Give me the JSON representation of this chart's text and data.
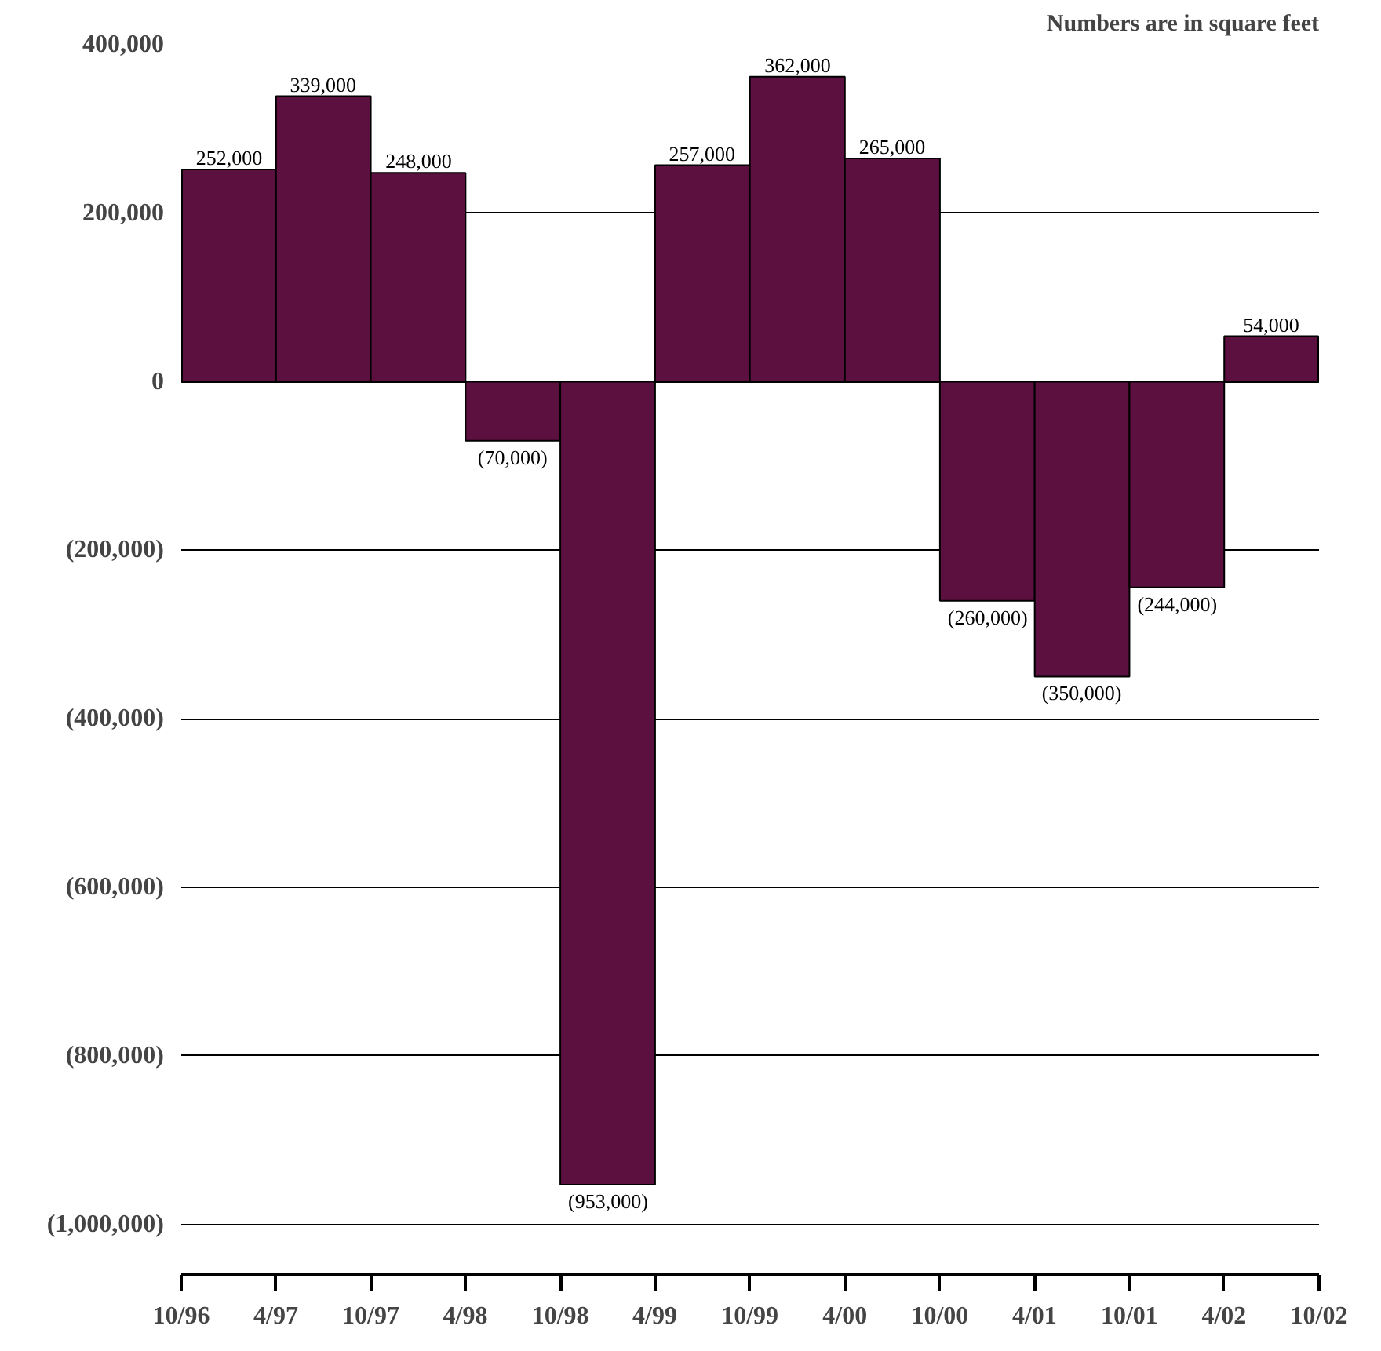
{
  "chart_data": {
    "type": "bar",
    "annotations": [
      "Numbers are in square feet"
    ],
    "x": [
      "1997-01",
      "1997-07",
      "1998-01",
      "1998-07",
      "1999-01",
      "1999-07",
      "2000-01",
      "2000-07",
      "2001-01",
      "2001-07",
      "2002-01",
      "2002-07"
    ],
    "values": [
      252000,
      339000,
      248000,
      -70000,
      -953000,
      257000,
      362000,
      265000,
      -260000,
      -350000,
      -244000,
      54000
    ],
    "value_labels": [
      "252,000",
      "339,000",
      "248,000",
      "(70,000)",
      "(953,000)",
      "257,000",
      "362,000",
      "265,000",
      "(260,000)",
      "(350,000)",
      "(244,000)",
      "54,000"
    ],
    "color": "#5c1040",
    "xlim": [
      "1996-10",
      "2002-10"
    ],
    "xticks": [
      {
        "value": "1996-10",
        "label": "10/96"
      },
      {
        "value": "1997-04",
        "label": "4/97"
      },
      {
        "value": "1997-10",
        "label": "10/97"
      },
      {
        "value": "1998-04",
        "label": "4/98"
      },
      {
        "value": "1998-10",
        "label": "10/98"
      },
      {
        "value": "1999-04",
        "label": "4/99"
      },
      {
        "value": "1999-10",
        "label": "10/99"
      },
      {
        "value": "2000-04",
        "label": "4/00"
      },
      {
        "value": "2000-10",
        "label": "10/00"
      },
      {
        "value": "2001-04",
        "label": "4/01"
      },
      {
        "value": "2001-10",
        "label": "10/01"
      },
      {
        "value": "2002-04",
        "label": "4/02"
      },
      {
        "value": "2002-10",
        "label": "10/02"
      }
    ],
    "ylim": [
      -1060000,
      400000
    ],
    "yticks": [
      {
        "value": 400000,
        "label": "400,000"
      },
      {
        "value": 200000,
        "label": "200,000"
      },
      0,
      {
        "value": -200000,
        "label": "(200,000)"
      },
      {
        "value": -400000,
        "label": "(400,000)"
      },
      {
        "value": -600000,
        "label": "(600,000)"
      },
      {
        "value": -800000,
        "label": "(800,000)"
      },
      {
        "value": -1000000,
        "label": "(1,000,000)"
      }
    ],
    "grid": "y"
  }
}
